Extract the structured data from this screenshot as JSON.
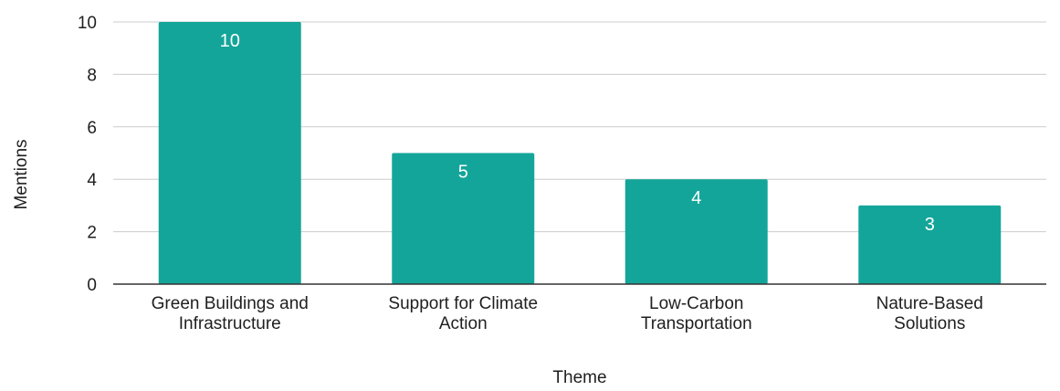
{
  "chart_data": {
    "type": "bar",
    "title": "",
    "xlabel": "Theme",
    "ylabel": "Mentions",
    "categories": [
      [
        "Green Buildings and",
        "Infrastructure"
      ],
      [
        "Support for Climate",
        "Action"
      ],
      [
        "Low-Carbon",
        "Transportation"
      ],
      [
        "Nature-Based",
        "Solutions"
      ]
    ],
    "values": [
      10,
      5,
      4,
      3
    ],
    "data_labels": [
      "10",
      "5",
      "4",
      "3"
    ],
    "ylim": [
      0,
      10
    ],
    "yticks": [
      "0",
      "2",
      "4",
      "6",
      "8",
      "10"
    ],
    "grid": true,
    "legend": "none",
    "bar_color": "#14a59a",
    "label_color": "#ffffff",
    "grid_color": "#cccccc"
  }
}
